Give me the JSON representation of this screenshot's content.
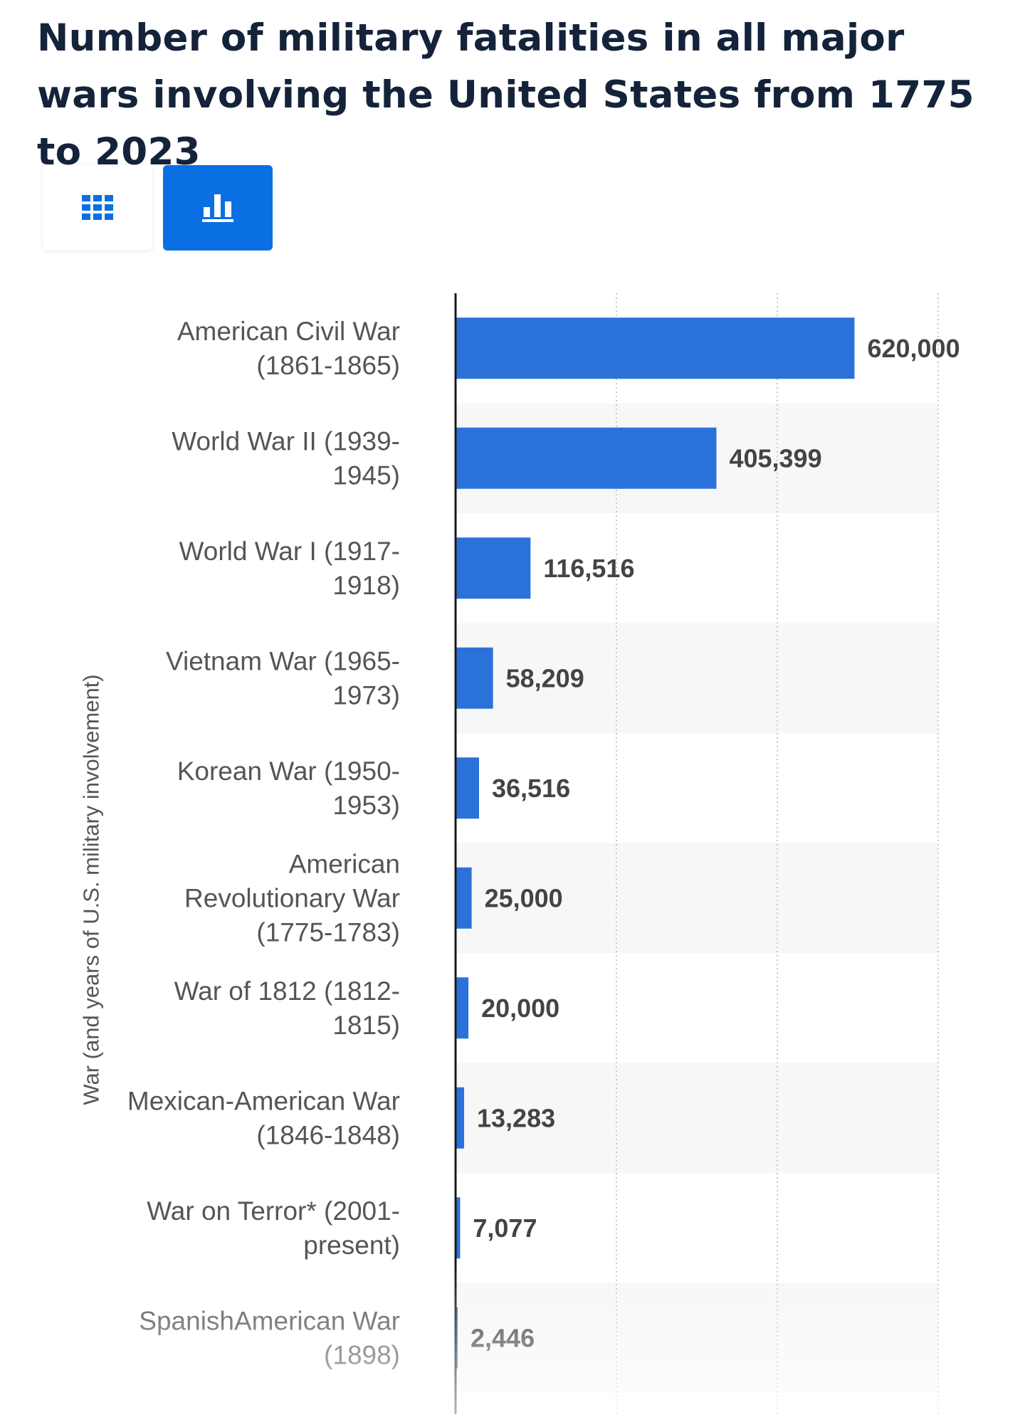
{
  "page": {
    "title": "Number of military fatalities in all major wars involving the United States from 1775 to 2023"
  },
  "toolbar": {
    "table_view_icon": "grid-icon",
    "chart_view_icon": "bar-chart-icon",
    "active_view": "chart"
  },
  "colors": {
    "bar": "#2a72d9",
    "active_button": "#0b6fe4",
    "title": "#14233a",
    "label": "#555555",
    "value": "#444444"
  },
  "chart_data": {
    "type": "bar",
    "orientation": "horizontal",
    "title": "Number of military fatalities in all major wars involving the United States from 1775 to 2023",
    "ylabel": "War (and years of U.S. military involvement)",
    "xlabel": "",
    "xlim": [
      0,
      750000
    ],
    "grid": true,
    "categories": [
      "American Civil War (1861-1865)",
      "World War II (1939-1945)",
      "World War I (1917-1918)",
      "Vietnam War (1965-1973)",
      "Korean War (1950-1953)",
      "American Revolutionary War (1775-1783)",
      "War of 1812 (1812-1815)",
      "Mexican-American War (1846-1848)",
      "War on Terror* (2001-present)",
      "SpanishAmerican War (1898)"
    ],
    "category_label_lines": [
      [
        "American Civil War",
        "(1861-1865)"
      ],
      [
        "World War II (1939-",
        "1945)"
      ],
      [
        "World War I (1917-",
        "1918)"
      ],
      [
        "Vietnam War (1965-",
        "1973)"
      ],
      [
        "Korean War (1950-",
        "1953)"
      ],
      [
        "American",
        "Revolutionary War",
        "(1775-1783)"
      ],
      [
        "War of 1812 (1812-",
        "1815)"
      ],
      [
        "Mexican-American War",
        "(1846-1848)"
      ],
      [
        "War on Terror* (2001-",
        "present)"
      ],
      [
        "SpanishAmerican War",
        "(1898)"
      ]
    ],
    "values": [
      620000,
      405399,
      116516,
      58209,
      36516,
      25000,
      20000,
      13283,
      7077,
      2446
    ],
    "value_labels": [
      "620,000",
      "405,399",
      "116,516",
      "58,209",
      "36,516",
      "25,000",
      "20,000",
      "13,283",
      "7,077",
      "2,446"
    ]
  }
}
